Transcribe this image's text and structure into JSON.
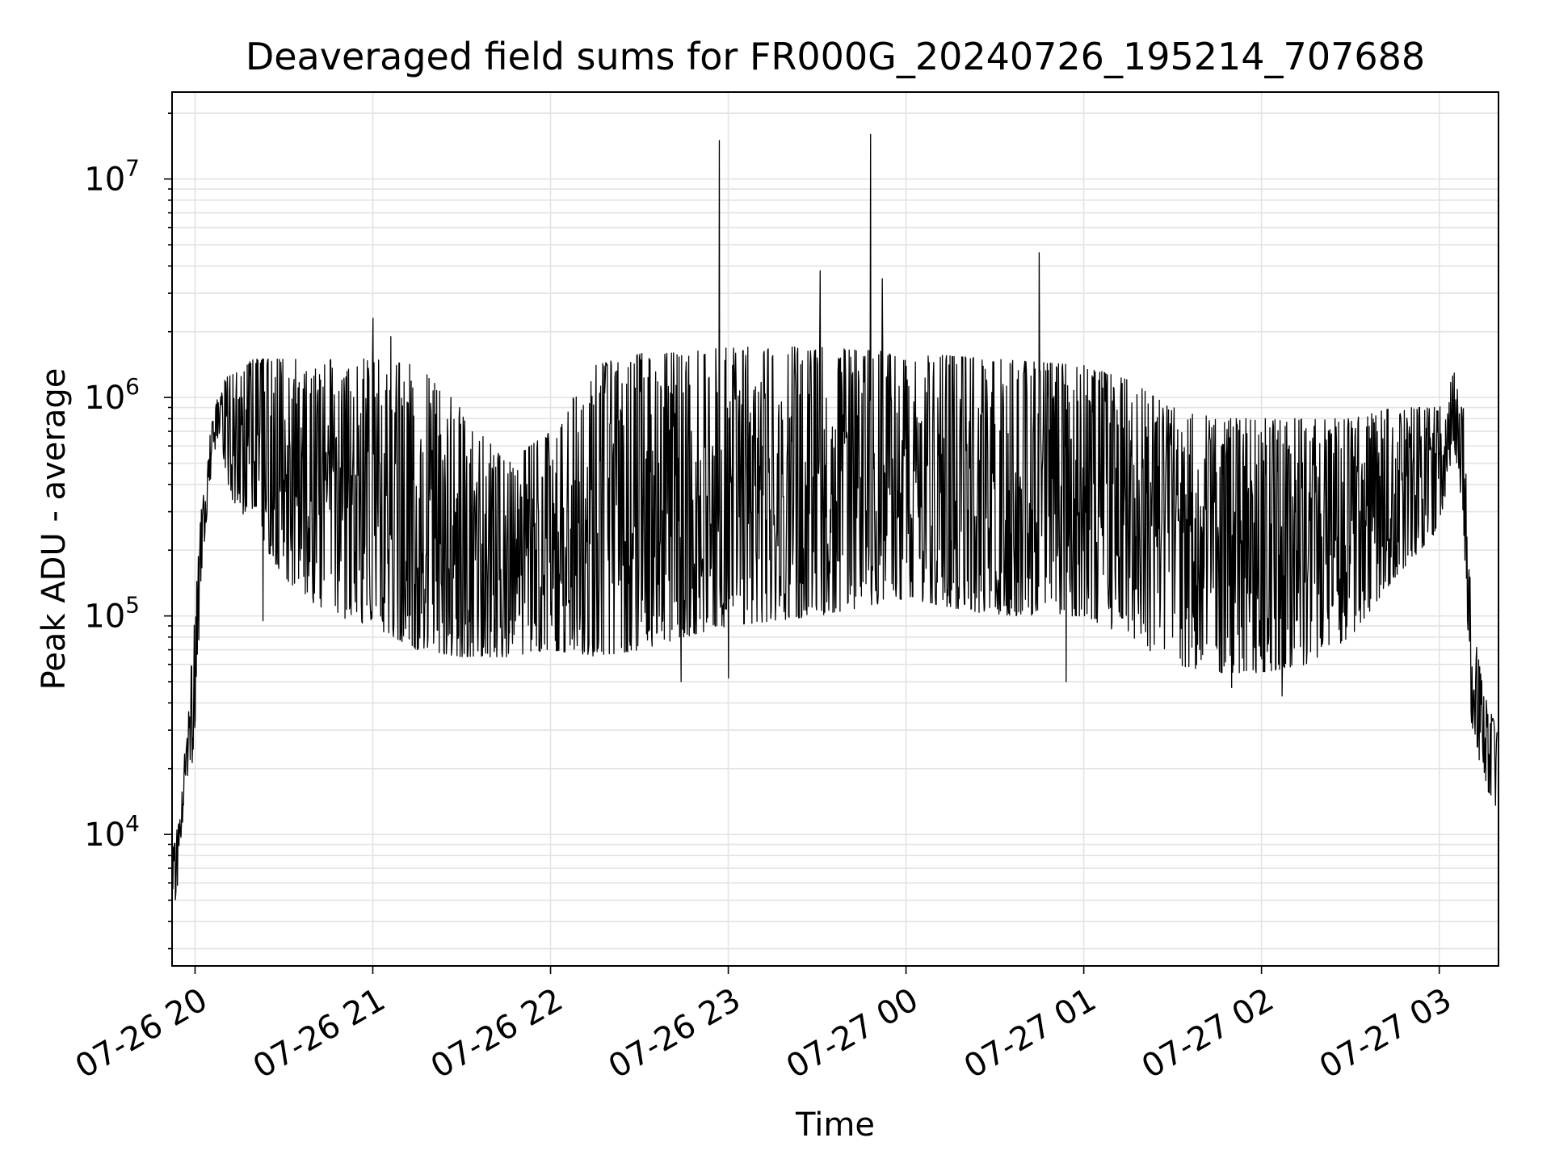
{
  "chart_data": {
    "type": "line",
    "title": "Deaveraged field sums for FR000G_20240726_195214_707688",
    "xlabel": "Time",
    "ylabel": "Peak ADU - average",
    "yscale": "log",
    "grid": true,
    "grid_minor": true,
    "legend": "none",
    "line_color": "#000000",
    "xlim": [
      "2024-07-26 19:52:14",
      "2024-07-27 03:20:00"
    ],
    "ylim": [
      2500,
      25000000
    ],
    "x_tick_labels": [
      "07-26 20",
      "07-26 21",
      "07-26 22",
      "07-26 23",
      "07-27 00",
      "07-27 01",
      "07-27 02",
      "07-27 03"
    ],
    "y_tick_labels": [
      {
        "value": 10000,
        "base": "10",
        "exp": "4"
      },
      {
        "value": 100000,
        "base": "10",
        "exp": "5"
      },
      {
        "value": 1000000,
        "base": "10",
        "exp": "6"
      },
      {
        "value": 10000000,
        "base": "10",
        "exp": "7"
      }
    ],
    "series": [
      {
        "envelope": [
          {
            "t": "2024-07-26 19:52:30",
            "low": 3500,
            "high": 9000
          },
          {
            "t": "2024-07-26 19:55:00",
            "low": 8000,
            "high": 12000
          },
          {
            "t": "2024-07-26 19:57:00",
            "low": 18000,
            "high": 30000
          },
          {
            "t": "2024-07-26 20:00:00",
            "low": 22000,
            "high": 110000
          },
          {
            "t": "2024-07-26 20:02:00",
            "low": 150000,
            "high": 300000
          },
          {
            "t": "2024-07-26 20:05:00",
            "low": 400000,
            "high": 800000
          },
          {
            "t": "2024-07-26 20:08:00",
            "low": 700000,
            "high": 1100000
          },
          {
            "t": "2024-07-26 20:12:00",
            "low": 350000,
            "high": 1300000
          },
          {
            "t": "2024-07-26 20:20:00",
            "low": 250000,
            "high": 1500000
          },
          {
            "t": "2024-07-26 20:30:00",
            "low": 150000,
            "high": 1500000
          },
          {
            "t": "2024-07-26 20:45:00",
            "low": 100000,
            "high": 1500000
          },
          {
            "t": "2024-07-26 21:00:00",
            "low": 90000,
            "high": 1500000
          },
          {
            "t": "2024-07-26 21:15:00",
            "low": 70000,
            "high": 1400000
          },
          {
            "t": "2024-07-26 21:30:00",
            "low": 65000,
            "high": 900000
          },
          {
            "t": "2024-07-26 21:45:00",
            "low": 65000,
            "high": 500000
          },
          {
            "t": "2024-07-26 22:00:00",
            "low": 70000,
            "high": 700000
          },
          {
            "t": "2024-07-26 22:15:00",
            "low": 65000,
            "high": 1400000
          },
          {
            "t": "2024-07-26 22:30:00",
            "low": 70000,
            "high": 1600000
          },
          {
            "t": "2024-07-26 22:45:00",
            "low": 80000,
            "high": 1600000
          },
          {
            "t": "2024-07-26 23:00:00",
            "low": 90000,
            "high": 1700000
          },
          {
            "t": "2024-07-26 23:30:00",
            "low": 100000,
            "high": 1700000
          },
          {
            "t": "2024-07-27 00:00:00",
            "low": 120000,
            "high": 1600000
          },
          {
            "t": "2024-07-27 00:30:00",
            "low": 100000,
            "high": 1500000
          },
          {
            "t": "2024-07-27 01:00:00",
            "low": 100000,
            "high": 1400000
          },
          {
            "t": "2024-07-27 01:15:00",
            "low": 80000,
            "high": 1200000
          },
          {
            "t": "2024-07-27 01:30:00",
            "low": 60000,
            "high": 900000
          },
          {
            "t": "2024-07-27 01:45:00",
            "low": 55000,
            "high": 800000
          },
          {
            "t": "2024-07-27 02:00:00",
            "low": 55000,
            "high": 800000
          },
          {
            "t": "2024-07-27 02:15:00",
            "low": 60000,
            "high": 800000
          },
          {
            "t": "2024-07-27 02:30:00",
            "low": 80000,
            "high": 800000
          },
          {
            "t": "2024-07-27 02:45:00",
            "low": 150000,
            "high": 900000
          },
          {
            "t": "2024-07-27 03:00:00",
            "low": 250000,
            "high": 900000
          },
          {
            "t": "2024-07-27 03:05:00",
            "low": 600000,
            "high": 1300000
          },
          {
            "t": "2024-07-27 03:08:00",
            "low": 300000,
            "high": 1000000
          },
          {
            "t": "2024-07-27 03:11:00",
            "low": 30000,
            "high": 100000
          },
          {
            "t": "2024-07-27 03:15:00",
            "low": 18000,
            "high": 45000
          },
          {
            "t": "2024-07-27 03:19:30",
            "low": 12000,
            "high": 30000
          }
        ],
        "spikes": [
          {
            "t": "2024-07-26 22:57:00",
            "value": 15000000
          },
          {
            "t": "2024-07-26 23:31:00",
            "value": 3800000
          },
          {
            "t": "2024-07-26 23:48:00",
            "value": 16000000
          },
          {
            "t": "2024-07-26 23:52:00",
            "value": 3500000
          },
          {
            "t": "2024-07-27 00:45:00",
            "value": 4600000
          },
          {
            "t": "2024-07-26 21:00:00",
            "value": 2300000
          },
          {
            "t": "2024-07-26 21:06:00",
            "value": 1900000
          }
        ],
        "dips": [
          {
            "t": "2024-07-26 20:23:00",
            "value": 95000
          },
          {
            "t": "2024-07-26 22:44:00",
            "value": 50000
          },
          {
            "t": "2024-07-26 23:00:00",
            "value": 52000
          },
          {
            "t": "2024-07-27 00:54:00",
            "value": 50000
          },
          {
            "t": "2024-07-27 01:50:00",
            "value": 47000
          },
          {
            "t": "2024-07-27 02:07:00",
            "value": 43000
          }
        ]
      }
    ]
  }
}
